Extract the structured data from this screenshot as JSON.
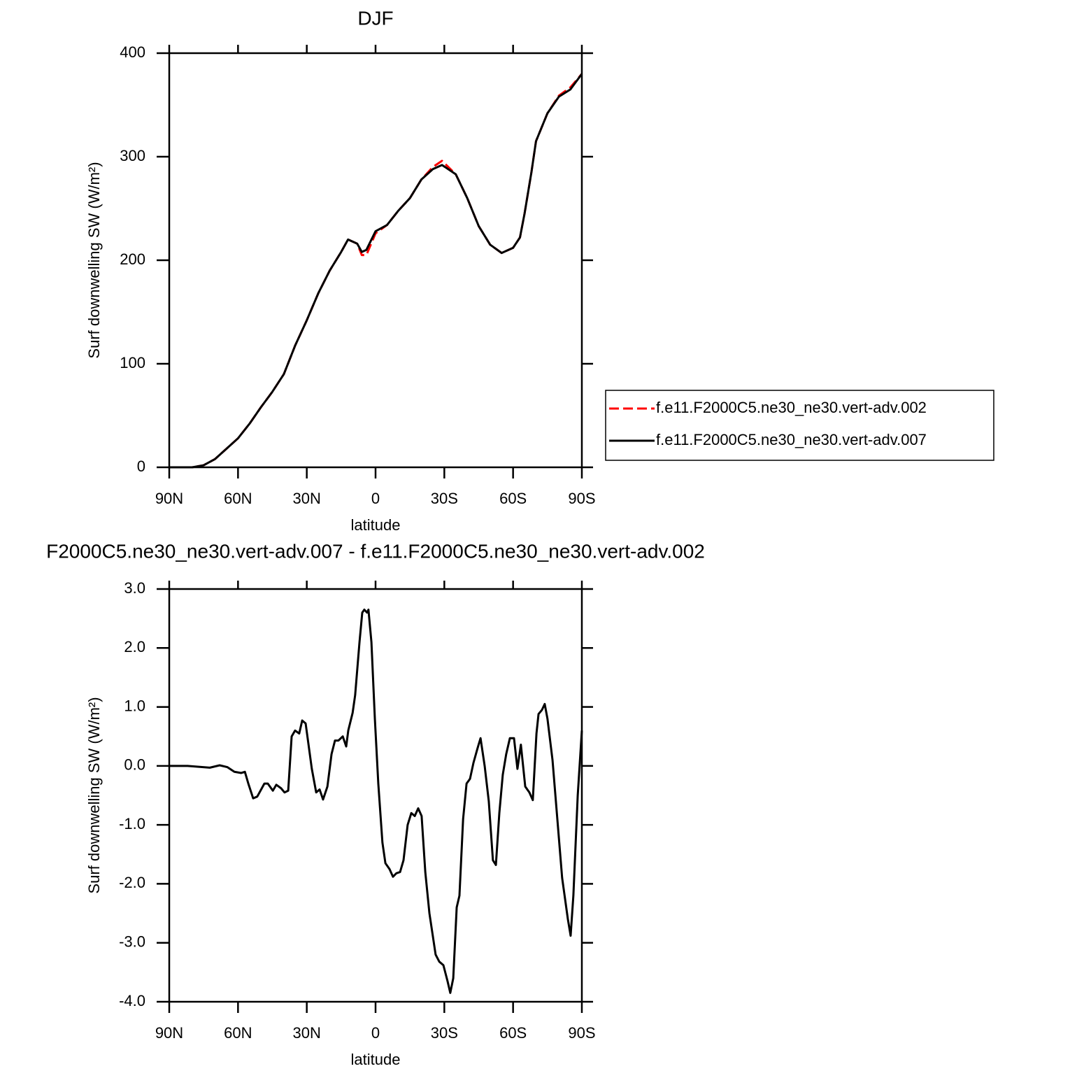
{
  "chart_data": [
    {
      "type": "line",
      "title": "DJF",
      "x_label": "latitude",
      "y_label": "Surf downwelling SW (W/m²)",
      "x": [
        90,
        80,
        75,
        70,
        65,
        60,
        55,
        50,
        45,
        40,
        35,
        30,
        25,
        20,
        15,
        12,
        8,
        6,
        4,
        0,
        -5,
        -10,
        -15,
        -20,
        -25,
        -29,
        -35,
        -40,
        -45,
        -50,
        -55,
        -60,
        -63,
        -65,
        -68,
        -70,
        -75,
        -80,
        -85,
        -90
      ],
      "series": [
        {
          "name": "f.e11.F2000C5.ne30_ne30.vert-adv.002",
          "color": "#ff0000",
          "dash": "dashed",
          "values": [
            0,
            0,
            2,
            8,
            18,
            28,
            42,
            58,
            73,
            90,
            118,
            142,
            168,
            190,
            208,
            220,
            216,
            205,
            205,
            226,
            234,
            248,
            260,
            278,
            290,
            296,
            283,
            260,
            233,
            215,
            207,
            212,
            222,
            245,
            285,
            315,
            342,
            359,
            367,
            380
          ]
        },
        {
          "name": "f.e11.F2000C5.ne30_ne30.vert-adv.007",
          "color": "#000000",
          "dash": "solid",
          "values": [
            0,
            0,
            2,
            8,
            18,
            28,
            42,
            58,
            73,
            90,
            118,
            142,
            168,
            190,
            208,
            220,
            216,
            208,
            210,
            228,
            234,
            248,
            260,
            278,
            288,
            292,
            283,
            260,
            233,
            215,
            207,
            212,
            222,
            245,
            285,
            315,
            342,
            358,
            365,
            380
          ]
        }
      ],
      "xlim": [
        90,
        -90
      ],
      "xticks": [
        {
          "value": 90,
          "label": "90N"
        },
        {
          "value": 60,
          "label": "60N"
        },
        {
          "value": 30,
          "label": "30N"
        },
        0,
        {
          "value": -30,
          "label": "30S"
        },
        {
          "value": -60,
          "label": "60S"
        },
        {
          "value": -90,
          "label": "90S"
        }
      ],
      "ylim": [
        0,
        400
      ],
      "yticks": [
        0,
        100,
        200,
        300,
        400
      ],
      "legend": "right"
    },
    {
      "type": "line",
      "title": "F2000C5.ne30_ne30.vert-adv.007 - f.e11.F2000C5.ne30_ne30.vert-adv.002",
      "x_label": "latitude",
      "y_label": "Surf downwelling SW (W/m²)",
      "x": [
        90,
        82,
        72.3,
        68,
        64.7,
        61.6,
        58.6,
        57,
        55.5,
        53.4,
        51.6,
        48.5,
        47,
        44.8,
        43.3,
        41.2,
        39.7,
        38.1,
        36.6,
        35.1,
        33.3,
        32,
        30.5,
        27.8,
        25.9,
        24.4,
        22.9,
        21,
        19.2,
        17.7,
        16.2,
        14.3,
        12.8,
        11.9,
        10,
        8.9,
        7,
        5.8,
        4.9,
        3.7,
        3.1,
        1.8,
        0.3,
        -1.2,
        -3,
        -4.3,
        -6.1,
        -7.6,
        -9.1,
        -10.7,
        -12.2,
        -14,
        -15.6,
        -17.1,
        -18.6,
        -20.1,
        -21.7,
        -23.5,
        -26.2,
        -27.8,
        -29.6,
        -31.4,
        -32.6,
        -33.9,
        -35.4,
        -36.6,
        -38.2,
        -39.7,
        -41.2,
        -42.7,
        -44.5,
        -45.8,
        -47.6,
        -49.4,
        -51.2,
        -52.5,
        -54,
        -55.5,
        -57,
        -58.6,
        -60.4,
        -61.9,
        -63.4,
        -65.3,
        -67.1,
        -68.6,
        -70.2,
        -71.1,
        -72.6,
        -73.8,
        -75,
        -77.2,
        -79.3,
        -81.4,
        -83.9,
        -85.1,
        -86.3,
        -88.2,
        -90
      ],
      "series": [
        {
          "color": "#000000",
          "dash": "solid",
          "values": [
            0,
            0,
            -0.03,
            0.01,
            -0.02,
            -0.1,
            -0.12,
            -0.1,
            -0.3,
            -0.55,
            -0.52,
            -0.3,
            -0.3,
            -0.42,
            -0.32,
            -0.38,
            -0.45,
            -0.42,
            0.5,
            0.6,
            0.55,
            0.77,
            0.72,
            -0.05,
            -0.45,
            -0.4,
            -0.57,
            -0.35,
            0.2,
            0.43,
            0.43,
            0.5,
            0.33,
            0.6,
            0.9,
            1.2,
            2.1,
            2.6,
            2.65,
            2.6,
            2.65,
            2.1,
            0.8,
            -0.3,
            -1.3,
            -1.65,
            -1.75,
            -1.88,
            -1.82,
            -1.8,
            -1.6,
            -1.0,
            -0.8,
            -0.85,
            -0.72,
            -0.85,
            -1.8,
            -2.5,
            -3.2,
            -3.32,
            -3.38,
            -3.65,
            -3.85,
            -3.6,
            -2.4,
            -2.2,
            -0.9,
            -0.3,
            -0.22,
            0.05,
            0.3,
            0.47,
            0,
            -0.6,
            -1.6,
            -1.68,
            -0.8,
            -0.15,
            0.2,
            0.47,
            0.47,
            -0.05,
            0.36,
            -0.35,
            -0.45,
            -0.58,
            0.55,
            0.88,
            0.95,
            1.05,
            0.8,
            0.1,
            -0.9,
            -1.9,
            -2.6,
            -2.88,
            -2.2,
            -0.5,
            0.6
          ]
        }
      ],
      "xlim": [
        90,
        -90
      ],
      "xticks": [
        {
          "value": 90,
          "label": "90N"
        },
        {
          "value": 60,
          "label": "60N"
        },
        {
          "value": 30,
          "label": "30N"
        },
        0,
        {
          "value": -30,
          "label": "30S"
        },
        {
          "value": -60,
          "label": "60S"
        },
        {
          "value": -90,
          "label": "90S"
        }
      ],
      "ylim": [
        -4,
        3
      ],
      "yticks": [
        {
          "value": -4,
          "label": "-4.0"
        },
        {
          "value": -3,
          "label": "-3.0"
        },
        {
          "value": -2,
          "label": "-2.0"
        },
        {
          "value": -1,
          "label": "-1.0"
        },
        {
          "value": 0,
          "label": "0.0"
        },
        {
          "value": 1,
          "label": "1.0"
        },
        {
          "value": 2,
          "label": "2.0"
        },
        {
          "value": 3,
          "label": "3.0"
        }
      ]
    }
  ]
}
